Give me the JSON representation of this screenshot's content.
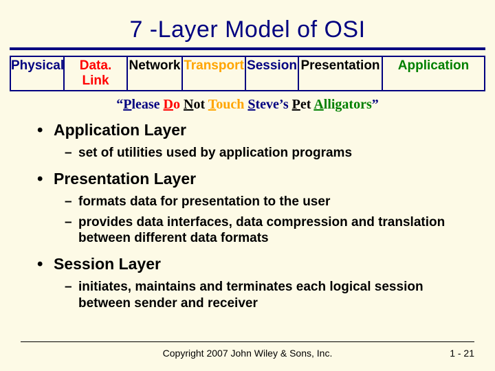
{
  "title": "7 -Layer Model of OSI",
  "layers": [
    {
      "label": "Physical",
      "color": "#000080",
      "width": 78
    },
    {
      "label": "Data. Link",
      "color": "#ff0000",
      "width": 92
    },
    {
      "label": "Network",
      "color": "#000000",
      "width": 80
    },
    {
      "label": "Transport",
      "color": "#ffa500",
      "width": 92
    },
    {
      "label": "Session",
      "color": "#000080",
      "width": 77
    },
    {
      "label": "Presentation",
      "color": "#000000",
      "width": 122
    },
    {
      "label": "Application",
      "color": "#008000",
      "width": 147
    }
  ],
  "mnemonic": {
    "open_quote": "“",
    "close_quote": "”",
    "words": [
      {
        "initial": "P",
        "rest": "lease",
        "color": "#000080"
      },
      {
        "initial": "D",
        "rest": "o",
        "color": "#ff0000"
      },
      {
        "initial": "N",
        "rest": "ot",
        "color": "#000000"
      },
      {
        "initial": "T",
        "rest": "ouch",
        "color": "#ffa500"
      },
      {
        "initial": "S",
        "rest": "teve’s",
        "color": "#000080"
      },
      {
        "initial": "P",
        "rest": "et",
        "color": "#000000"
      },
      {
        "initial": "A",
        "rest": "lligators",
        "color": "#008000"
      }
    ]
  },
  "bullets": [
    {
      "heading": "Application Layer",
      "subs": [
        "set of utilities used by application programs"
      ]
    },
    {
      "heading": "Presentation Layer",
      "subs": [
        "formats data for presentation to the user",
        "provides data interfaces, data compression and translation between different data formats"
      ]
    },
    {
      "heading": "Session Layer",
      "subs": [
        "initiates, maintains and terminates each logical session between sender and receiver"
      ]
    }
  ],
  "footer": {
    "copyright": "Copyright 2007 John Wiley & Sons, Inc.",
    "page": "1 - 21"
  },
  "colors": {
    "background": "#fdfae6",
    "title": "#000080",
    "rule": "#000080"
  }
}
